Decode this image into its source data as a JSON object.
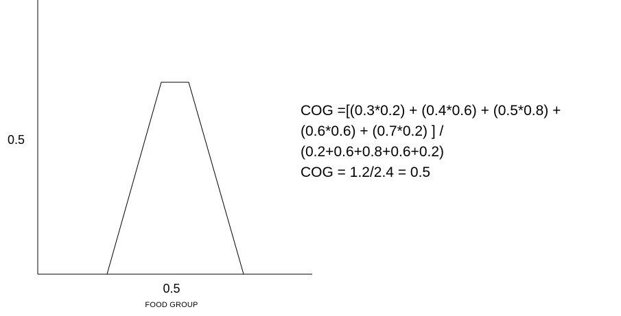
{
  "axes": {
    "y_tick_label": "0.5",
    "x_tick_label": "0.5",
    "x_axis_label": "FOOD GROUP"
  },
  "membership_function": {
    "shape": "trapezoid",
    "stroke_color": "#000000"
  },
  "formula": {
    "lines": [
      "COG =[(0.3*0.2) + (0.4*0.6) + (0.5*0.8) +",
      "(0.6*0.6) + (0.7*0.2) ] /",
      "(0.2+0.6+0.8+0.6+0.2)",
      "COG = 1.2/2.4 = 0.5"
    ]
  }
}
